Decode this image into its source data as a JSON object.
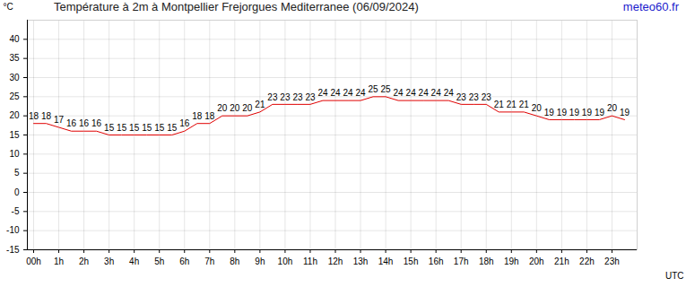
{
  "chart_data": {
    "type": "line",
    "title": "Température à 2m à Montpellier Frejorgues Mediterranee (06/09/2024)",
    "source": "meteo60.fr",
    "x_label": "UTC",
    "y_label": "°C",
    "x": [
      0,
      0.5,
      1,
      1.5,
      2,
      2.5,
      3,
      3.5,
      4,
      4.5,
      5,
      5.5,
      6,
      6.5,
      7,
      7.5,
      8,
      8.5,
      9,
      9.5,
      10,
      10.5,
      11,
      11.5,
      12,
      12.5,
      13,
      13.5,
      14,
      14.5,
      15,
      15.5,
      16,
      16.5,
      17,
      17.5,
      18,
      18.5,
      19,
      19.5,
      20,
      20.5,
      21,
      21.5,
      22,
      22.5,
      23,
      23.5
    ],
    "values": [
      18,
      18,
      17,
      16,
      16,
      16,
      15,
      15,
      15,
      15,
      15,
      15,
      16,
      18,
      18,
      20,
      20,
      20,
      21,
      23,
      23,
      23,
      23,
      24,
      24,
      24,
      24,
      25,
      25,
      24,
      24,
      24,
      24,
      24,
      23,
      23,
      23,
      21,
      21,
      21,
      20,
      19,
      19,
      19,
      19,
      19,
      20,
      19
    ],
    "color": "#e00000",
    "xlim": [
      -0.25,
      24
    ],
    "xticks": [
      {
        "value": 0,
        "label": "00h"
      },
      {
        "value": 1,
        "label": "1h"
      },
      {
        "value": 2,
        "label": "2h"
      },
      {
        "value": 3,
        "label": "3h"
      },
      {
        "value": 4,
        "label": "4h"
      },
      {
        "value": 5,
        "label": "5h"
      },
      {
        "value": 6,
        "label": "6h"
      },
      {
        "value": 7,
        "label": "7h"
      },
      {
        "value": 8,
        "label": "8h"
      },
      {
        "value": 9,
        "label": "9h"
      },
      {
        "value": 10,
        "label": "10h"
      },
      {
        "value": 11,
        "label": "11h"
      },
      {
        "value": 12,
        "label": "12h"
      },
      {
        "value": 13,
        "label": "13h"
      },
      {
        "value": 14,
        "label": "14h"
      },
      {
        "value": 15,
        "label": "15h"
      },
      {
        "value": 16,
        "label": "16h"
      },
      {
        "value": 17,
        "label": "17h"
      },
      {
        "value": 18,
        "label": "18h"
      },
      {
        "value": 19,
        "label": "19h"
      },
      {
        "value": 20,
        "label": "20h"
      },
      {
        "value": 21,
        "label": "21h"
      },
      {
        "value": 22,
        "label": "22h"
      },
      {
        "value": 23,
        "label": "23h"
      }
    ],
    "ylim": [
      -15,
      45
    ],
    "yticks": [
      -15,
      -10,
      -5,
      0,
      5,
      10,
      15,
      20,
      25,
      30,
      35,
      40
    ],
    "grid": true,
    "data_labels": true
  }
}
